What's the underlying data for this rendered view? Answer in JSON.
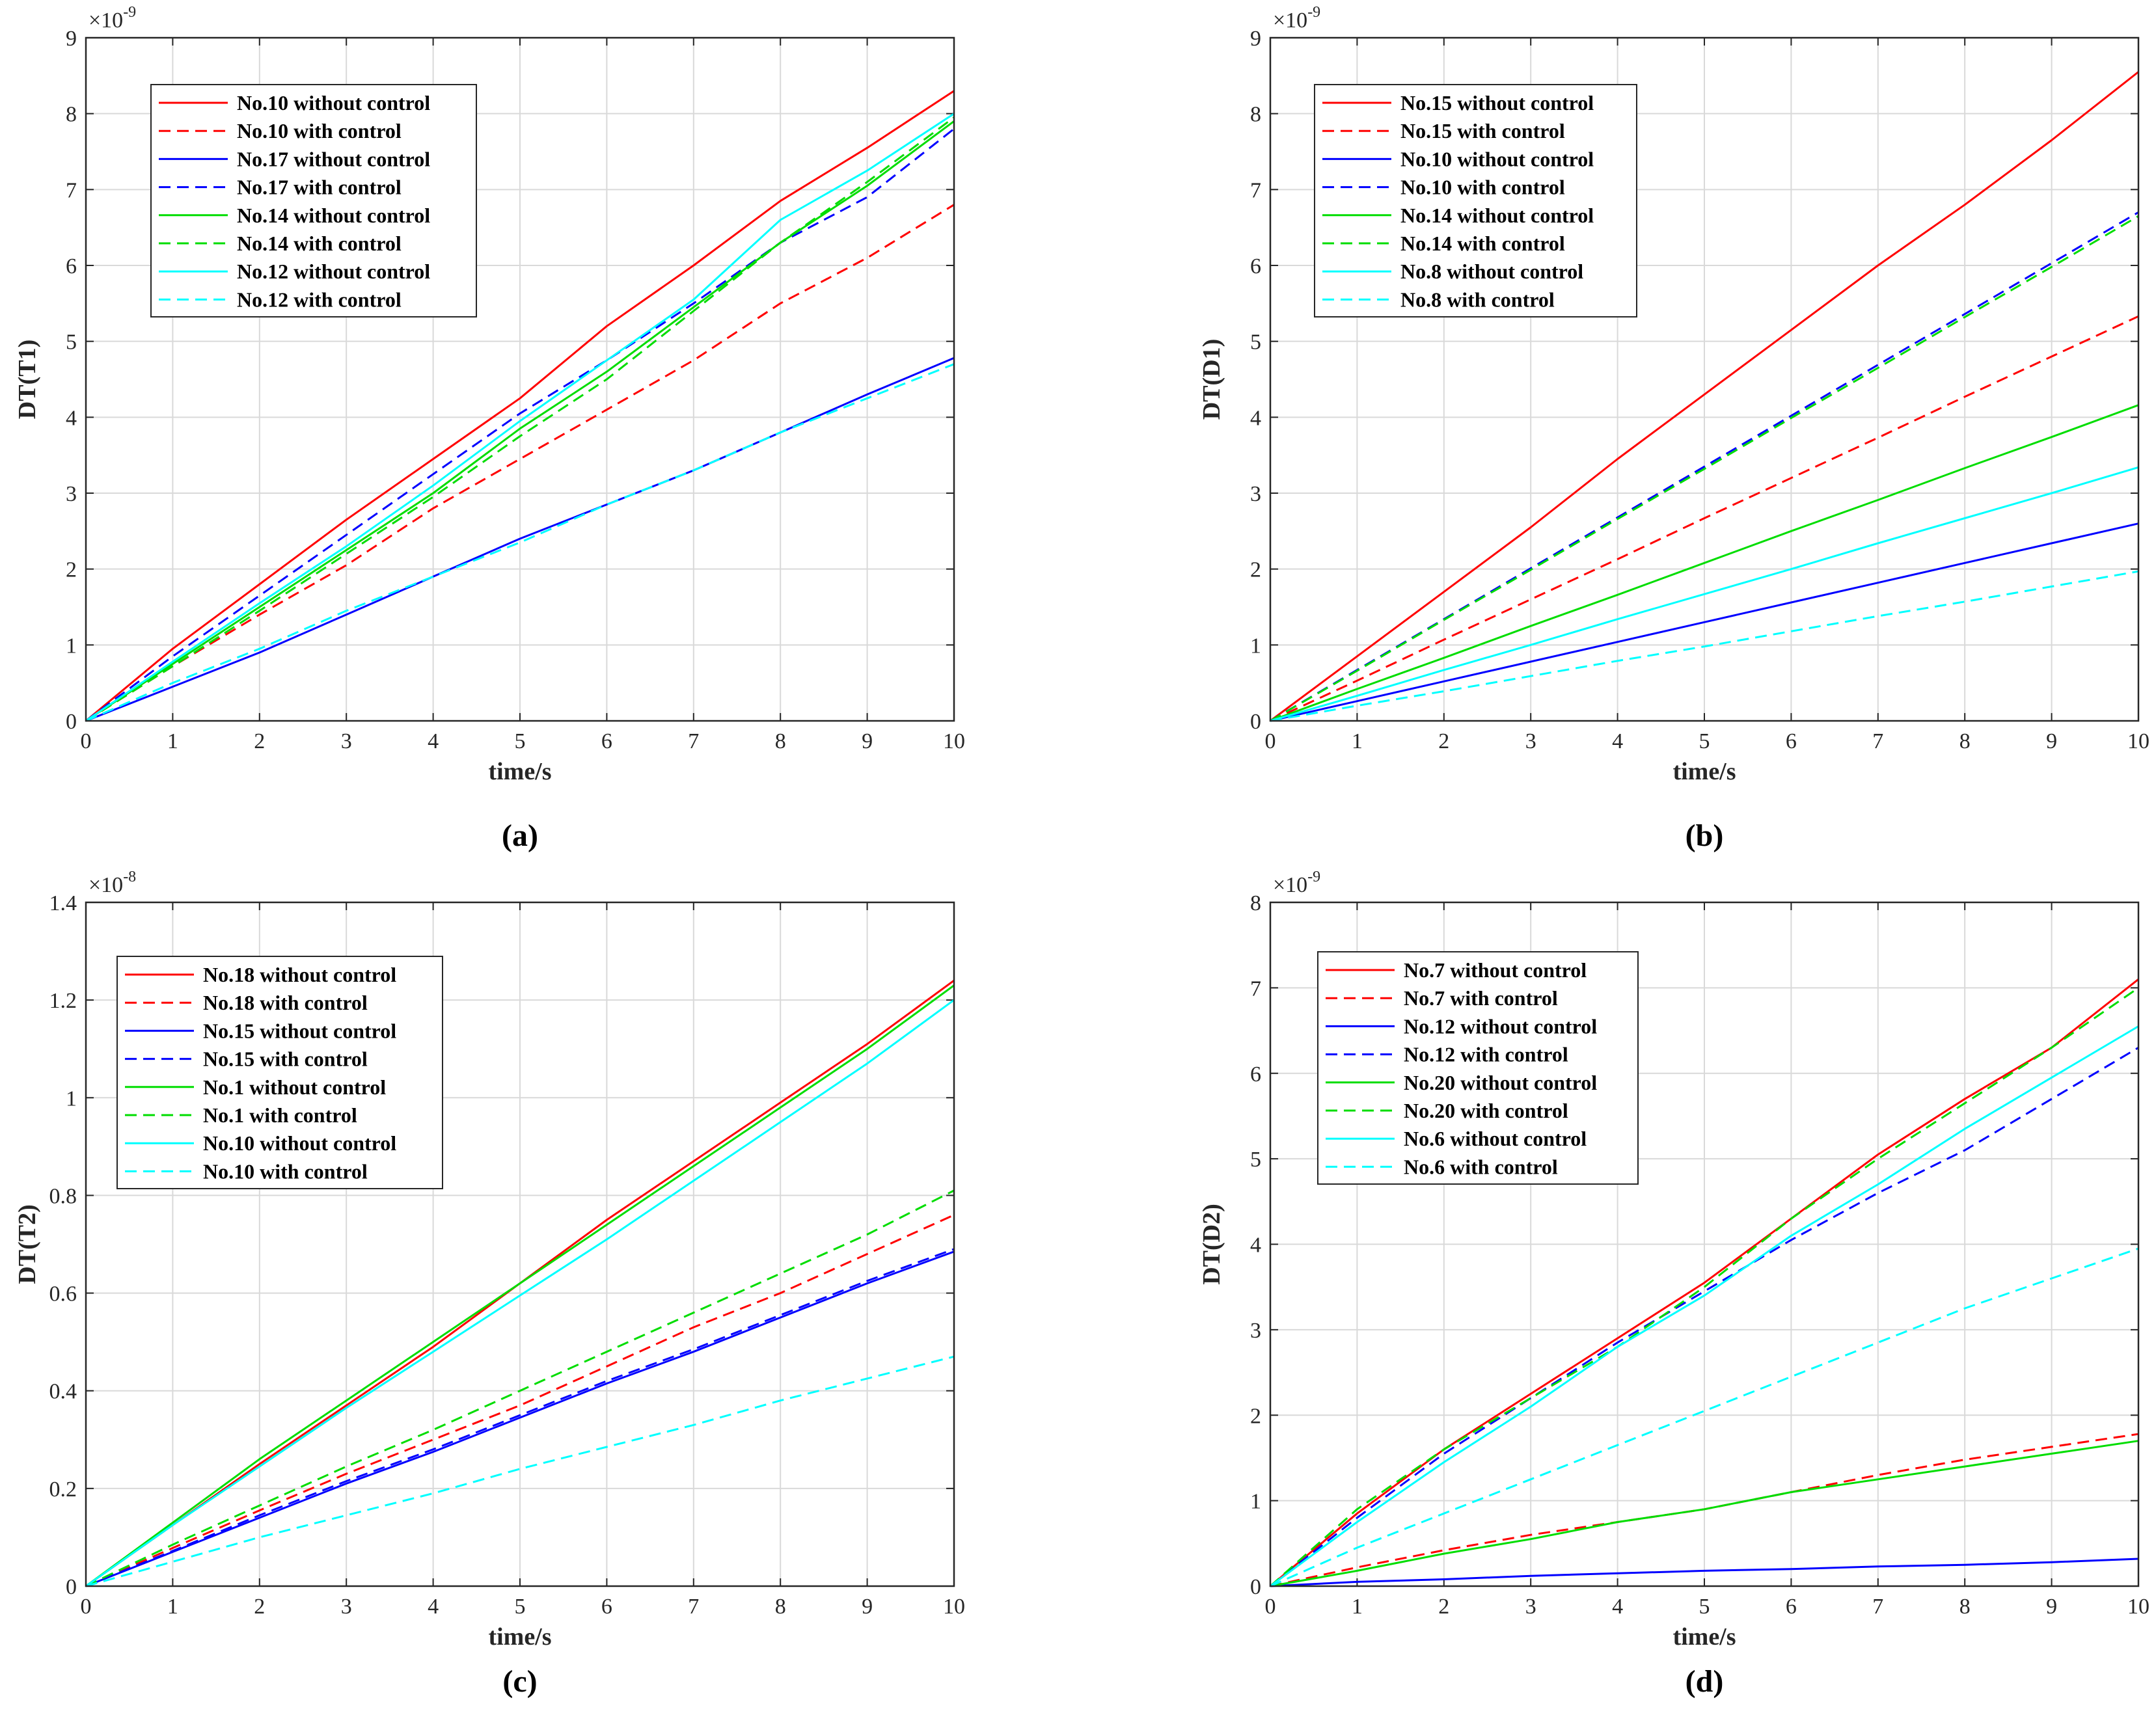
{
  "colors": {
    "red": "#ff0000",
    "blue": "#0000ff",
    "green": "#00dd00",
    "cyan": "#00ffff"
  },
  "chart_data": [
    {
      "type": "line",
      "caption": "(a)",
      "xlabel": "time/s",
      "ylabel": "DT(T1)",
      "y_exponent": "-9",
      "xlim": [
        0,
        10
      ],
      "ylim": [
        0,
        9
      ],
      "xticks": [
        0,
        1,
        2,
        3,
        4,
        5,
        6,
        7,
        8,
        9,
        10
      ],
      "yticks": [
        0,
        1,
        2,
        3,
        4,
        5,
        6,
        7,
        8,
        9
      ],
      "grid": true,
      "legend_position": "top-left",
      "x": [
        0,
        1,
        2,
        3,
        4,
        5,
        6,
        7,
        8,
        9,
        10
      ],
      "series": [
        {
          "name": "No.10 without control",
          "color": "red",
          "dash": false,
          "values": [
            0,
            0.95,
            1.8,
            2.65,
            3.45,
            4.25,
            5.2,
            6.0,
            6.85,
            7.55,
            8.3
          ]
        },
        {
          "name": "No.10 with control",
          "color": "red",
          "dash": true,
          "values": [
            0,
            0.72,
            1.4,
            2.05,
            2.8,
            3.45,
            4.1,
            4.75,
            5.5,
            6.1,
            6.8
          ]
        },
        {
          "name": "No.17 without control",
          "color": "blue",
          "dash": false,
          "values": [
            0,
            0.45,
            0.9,
            1.4,
            1.9,
            2.4,
            2.85,
            3.3,
            3.8,
            4.3,
            4.78
          ]
        },
        {
          "name": "No.17 with control",
          "color": "blue",
          "dash": true,
          "values": [
            0,
            0.85,
            1.65,
            2.45,
            3.25,
            4.05,
            4.75,
            5.5,
            6.3,
            6.9,
            7.8
          ]
        },
        {
          "name": "No.14 without control",
          "color": "green",
          "dash": false,
          "values": [
            0,
            0.75,
            1.5,
            2.25,
            3.0,
            3.85,
            4.6,
            5.45,
            6.3,
            7.05,
            7.9
          ]
        },
        {
          "name": "No.14 with control",
          "color": "green",
          "dash": true,
          "values": [
            0,
            0.72,
            1.45,
            2.2,
            2.95,
            3.75,
            4.5,
            5.4,
            6.3,
            7.1,
            7.95
          ]
        },
        {
          "name": "No.12 without control",
          "color": "cyan",
          "dash": false,
          "values": [
            0,
            0.78,
            1.55,
            2.3,
            3.1,
            3.95,
            4.75,
            5.55,
            6.6,
            7.25,
            8.0
          ]
        },
        {
          "name": "No.12 with control",
          "color": "cyan",
          "dash": true,
          "values": [
            0,
            0.5,
            0.95,
            1.45,
            1.9,
            2.35,
            2.85,
            3.3,
            3.8,
            4.25,
            4.7
          ]
        }
      ]
    },
    {
      "type": "line",
      "caption": "(b)",
      "xlabel": "time/s",
      "ylabel": "DT(D1)",
      "y_exponent": "-9",
      "xlim": [
        0,
        10
      ],
      "ylim": [
        0,
        9
      ],
      "xticks": [
        0,
        1,
        2,
        3,
        4,
        5,
        6,
        7,
        8,
        9,
        10
      ],
      "yticks": [
        0,
        1,
        2,
        3,
        4,
        5,
        6,
        7,
        8,
        9
      ],
      "grid": true,
      "legend_position": "top-left",
      "x": [
        0,
        1,
        2,
        3,
        4,
        5,
        6,
        7,
        8,
        9,
        10
      ],
      "series": [
        {
          "name": "No.15 without control",
          "color": "red",
          "dash": false,
          "values": [
            0,
            0.85,
            1.7,
            2.55,
            3.45,
            4.3,
            5.15,
            6.0,
            6.8,
            7.65,
            8.55
          ]
        },
        {
          "name": "No.15 with control",
          "color": "red",
          "dash": true,
          "values": [
            0,
            0.53,
            1.07,
            1.6,
            2.13,
            2.67,
            3.2,
            3.73,
            4.27,
            4.8,
            5.33
          ]
        },
        {
          "name": "No.10 without control",
          "color": "blue",
          "dash": false,
          "values": [
            0,
            0.26,
            0.52,
            0.78,
            1.04,
            1.3,
            1.56,
            1.82,
            2.08,
            2.34,
            2.6
          ]
        },
        {
          "name": "No.10 with control",
          "color": "blue",
          "dash": true,
          "values": [
            0,
            0.67,
            1.34,
            2.01,
            2.68,
            3.35,
            4.02,
            4.69,
            5.36,
            6.03,
            6.7
          ]
        },
        {
          "name": "No.14 without control",
          "color": "green",
          "dash": false,
          "values": [
            0,
            0.42,
            0.83,
            1.25,
            1.66,
            2.08,
            2.5,
            2.91,
            3.33,
            3.74,
            4.16
          ]
        },
        {
          "name": "No.14 with control",
          "color": "green",
          "dash": true,
          "values": [
            0,
            0.66,
            1.33,
            1.99,
            2.66,
            3.32,
            3.99,
            4.65,
            5.32,
            5.98,
            6.65
          ]
        },
        {
          "name": "No.8 without control",
          "color": "cyan",
          "dash": false,
          "values": [
            0,
            0.33,
            0.67,
            1.0,
            1.34,
            1.67,
            2.0,
            2.34,
            2.67,
            3.0,
            3.34
          ]
        },
        {
          "name": "No.8 with control",
          "color": "cyan",
          "dash": true,
          "values": [
            0,
            0.2,
            0.39,
            0.59,
            0.79,
            0.98,
            1.18,
            1.38,
            1.57,
            1.77,
            1.97
          ]
        }
      ]
    },
    {
      "type": "line",
      "caption": "(c)",
      "xlabel": "time/s",
      "ylabel": "DT(T2)",
      "y_exponent": "-8",
      "xlim": [
        0,
        10
      ],
      "ylim": [
        0,
        1.4
      ],
      "xticks": [
        0,
        1,
        2,
        3,
        4,
        5,
        6,
        7,
        8,
        9,
        10
      ],
      "yticks": [
        0,
        0.2,
        0.4,
        0.6,
        0.8,
        1,
        1.2,
        1.4
      ],
      "grid": true,
      "legend_position": "top-left",
      "x": [
        0,
        1,
        2,
        3,
        4,
        5,
        6,
        7,
        8,
        9,
        10
      ],
      "series": [
        {
          "name": "No.18 without control",
          "color": "red",
          "dash": false,
          "values": [
            0,
            0.125,
            0.25,
            0.37,
            0.49,
            0.62,
            0.75,
            0.87,
            0.99,
            1.11,
            1.24
          ]
        },
        {
          "name": "No.18 with control",
          "color": "red",
          "dash": true,
          "values": [
            0,
            0.078,
            0.155,
            0.23,
            0.3,
            0.37,
            0.45,
            0.53,
            0.6,
            0.68,
            0.76
          ]
        },
        {
          "name": "No.15 without control",
          "color": "blue",
          "dash": false,
          "values": [
            0,
            0.07,
            0.14,
            0.21,
            0.275,
            0.345,
            0.415,
            0.48,
            0.55,
            0.62,
            0.685
          ]
        },
        {
          "name": "No.15 with control",
          "color": "blue",
          "dash": true,
          "values": [
            0,
            0.072,
            0.145,
            0.215,
            0.28,
            0.35,
            0.42,
            0.485,
            0.555,
            0.625,
            0.69
          ]
        },
        {
          "name": "No.1 without control",
          "color": "green",
          "dash": false,
          "values": [
            0,
            0.13,
            0.26,
            0.38,
            0.5,
            0.62,
            0.74,
            0.86,
            0.98,
            1.1,
            1.23
          ]
        },
        {
          "name": "No.1 with control",
          "color": "green",
          "dash": true,
          "values": [
            0,
            0.085,
            0.165,
            0.245,
            0.32,
            0.4,
            0.48,
            0.56,
            0.64,
            0.72,
            0.81
          ]
        },
        {
          "name": "No.10 without control",
          "color": "cyan",
          "dash": false,
          "values": [
            0,
            0.125,
            0.245,
            0.365,
            0.48,
            0.595,
            0.71,
            0.83,
            0.95,
            1.07,
            1.2
          ]
        },
        {
          "name": "No.10 with control",
          "color": "cyan",
          "dash": true,
          "values": [
            0,
            0.05,
            0.1,
            0.145,
            0.19,
            0.24,
            0.285,
            0.33,
            0.38,
            0.425,
            0.47
          ]
        }
      ]
    },
    {
      "type": "line",
      "caption": "(d)",
      "xlabel": "time/s",
      "ylabel": "DT(D2)",
      "y_exponent": "-9",
      "xlim": [
        0,
        10
      ],
      "ylim": [
        0,
        8
      ],
      "xticks": [
        0,
        1,
        2,
        3,
        4,
        5,
        6,
        7,
        8,
        9,
        10
      ],
      "yticks": [
        0,
        1,
        2,
        3,
        4,
        5,
        6,
        7,
        8
      ],
      "grid": true,
      "legend_position": "top-left",
      "x": [
        0,
        1,
        2,
        3,
        4,
        5,
        6,
        7,
        8,
        9,
        10
      ],
      "series": [
        {
          "name": "No.7 without control",
          "color": "red",
          "dash": false,
          "values": [
            0,
            0.85,
            1.6,
            2.25,
            2.9,
            3.55,
            4.3,
            5.05,
            5.7,
            6.3,
            7.1
          ]
        },
        {
          "name": "No.7 with control",
          "color": "red",
          "dash": true,
          "values": [
            0,
            0.22,
            0.42,
            0.6,
            0.75,
            0.9,
            1.1,
            1.3,
            1.48,
            1.63,
            1.78
          ]
        },
        {
          "name": "No.12 without control",
          "color": "blue",
          "dash": false,
          "values": [
            0,
            0.05,
            0.08,
            0.12,
            0.15,
            0.18,
            0.2,
            0.23,
            0.25,
            0.28,
            0.32
          ]
        },
        {
          "name": "No.12 with control",
          "color": "blue",
          "dash": true,
          "values": [
            0,
            0.8,
            1.55,
            2.2,
            2.85,
            3.45,
            4.05,
            4.6,
            5.1,
            5.7,
            6.3
          ]
        },
        {
          "name": "No.20 without control",
          "color": "green",
          "dash": false,
          "values": [
            0,
            0.18,
            0.38,
            0.55,
            0.75,
            0.9,
            1.1,
            1.25,
            1.4,
            1.55,
            1.7
          ]
        },
        {
          "name": "No.20 with control",
          "color": "green",
          "dash": true,
          "values": [
            0,
            0.9,
            1.6,
            2.2,
            2.8,
            3.5,
            4.3,
            5.0,
            5.65,
            6.3,
            7.0
          ]
        },
        {
          "name": "No.6 without control",
          "color": "cyan",
          "dash": false,
          "values": [
            0,
            0.75,
            1.45,
            2.1,
            2.8,
            3.4,
            4.1,
            4.7,
            5.35,
            5.95,
            6.55
          ]
        },
        {
          "name": "No.6 with control",
          "color": "cyan",
          "dash": true,
          "values": [
            0,
            0.45,
            0.85,
            1.25,
            1.65,
            2.05,
            2.45,
            2.85,
            3.25,
            3.6,
            3.95
          ]
        }
      ]
    }
  ]
}
